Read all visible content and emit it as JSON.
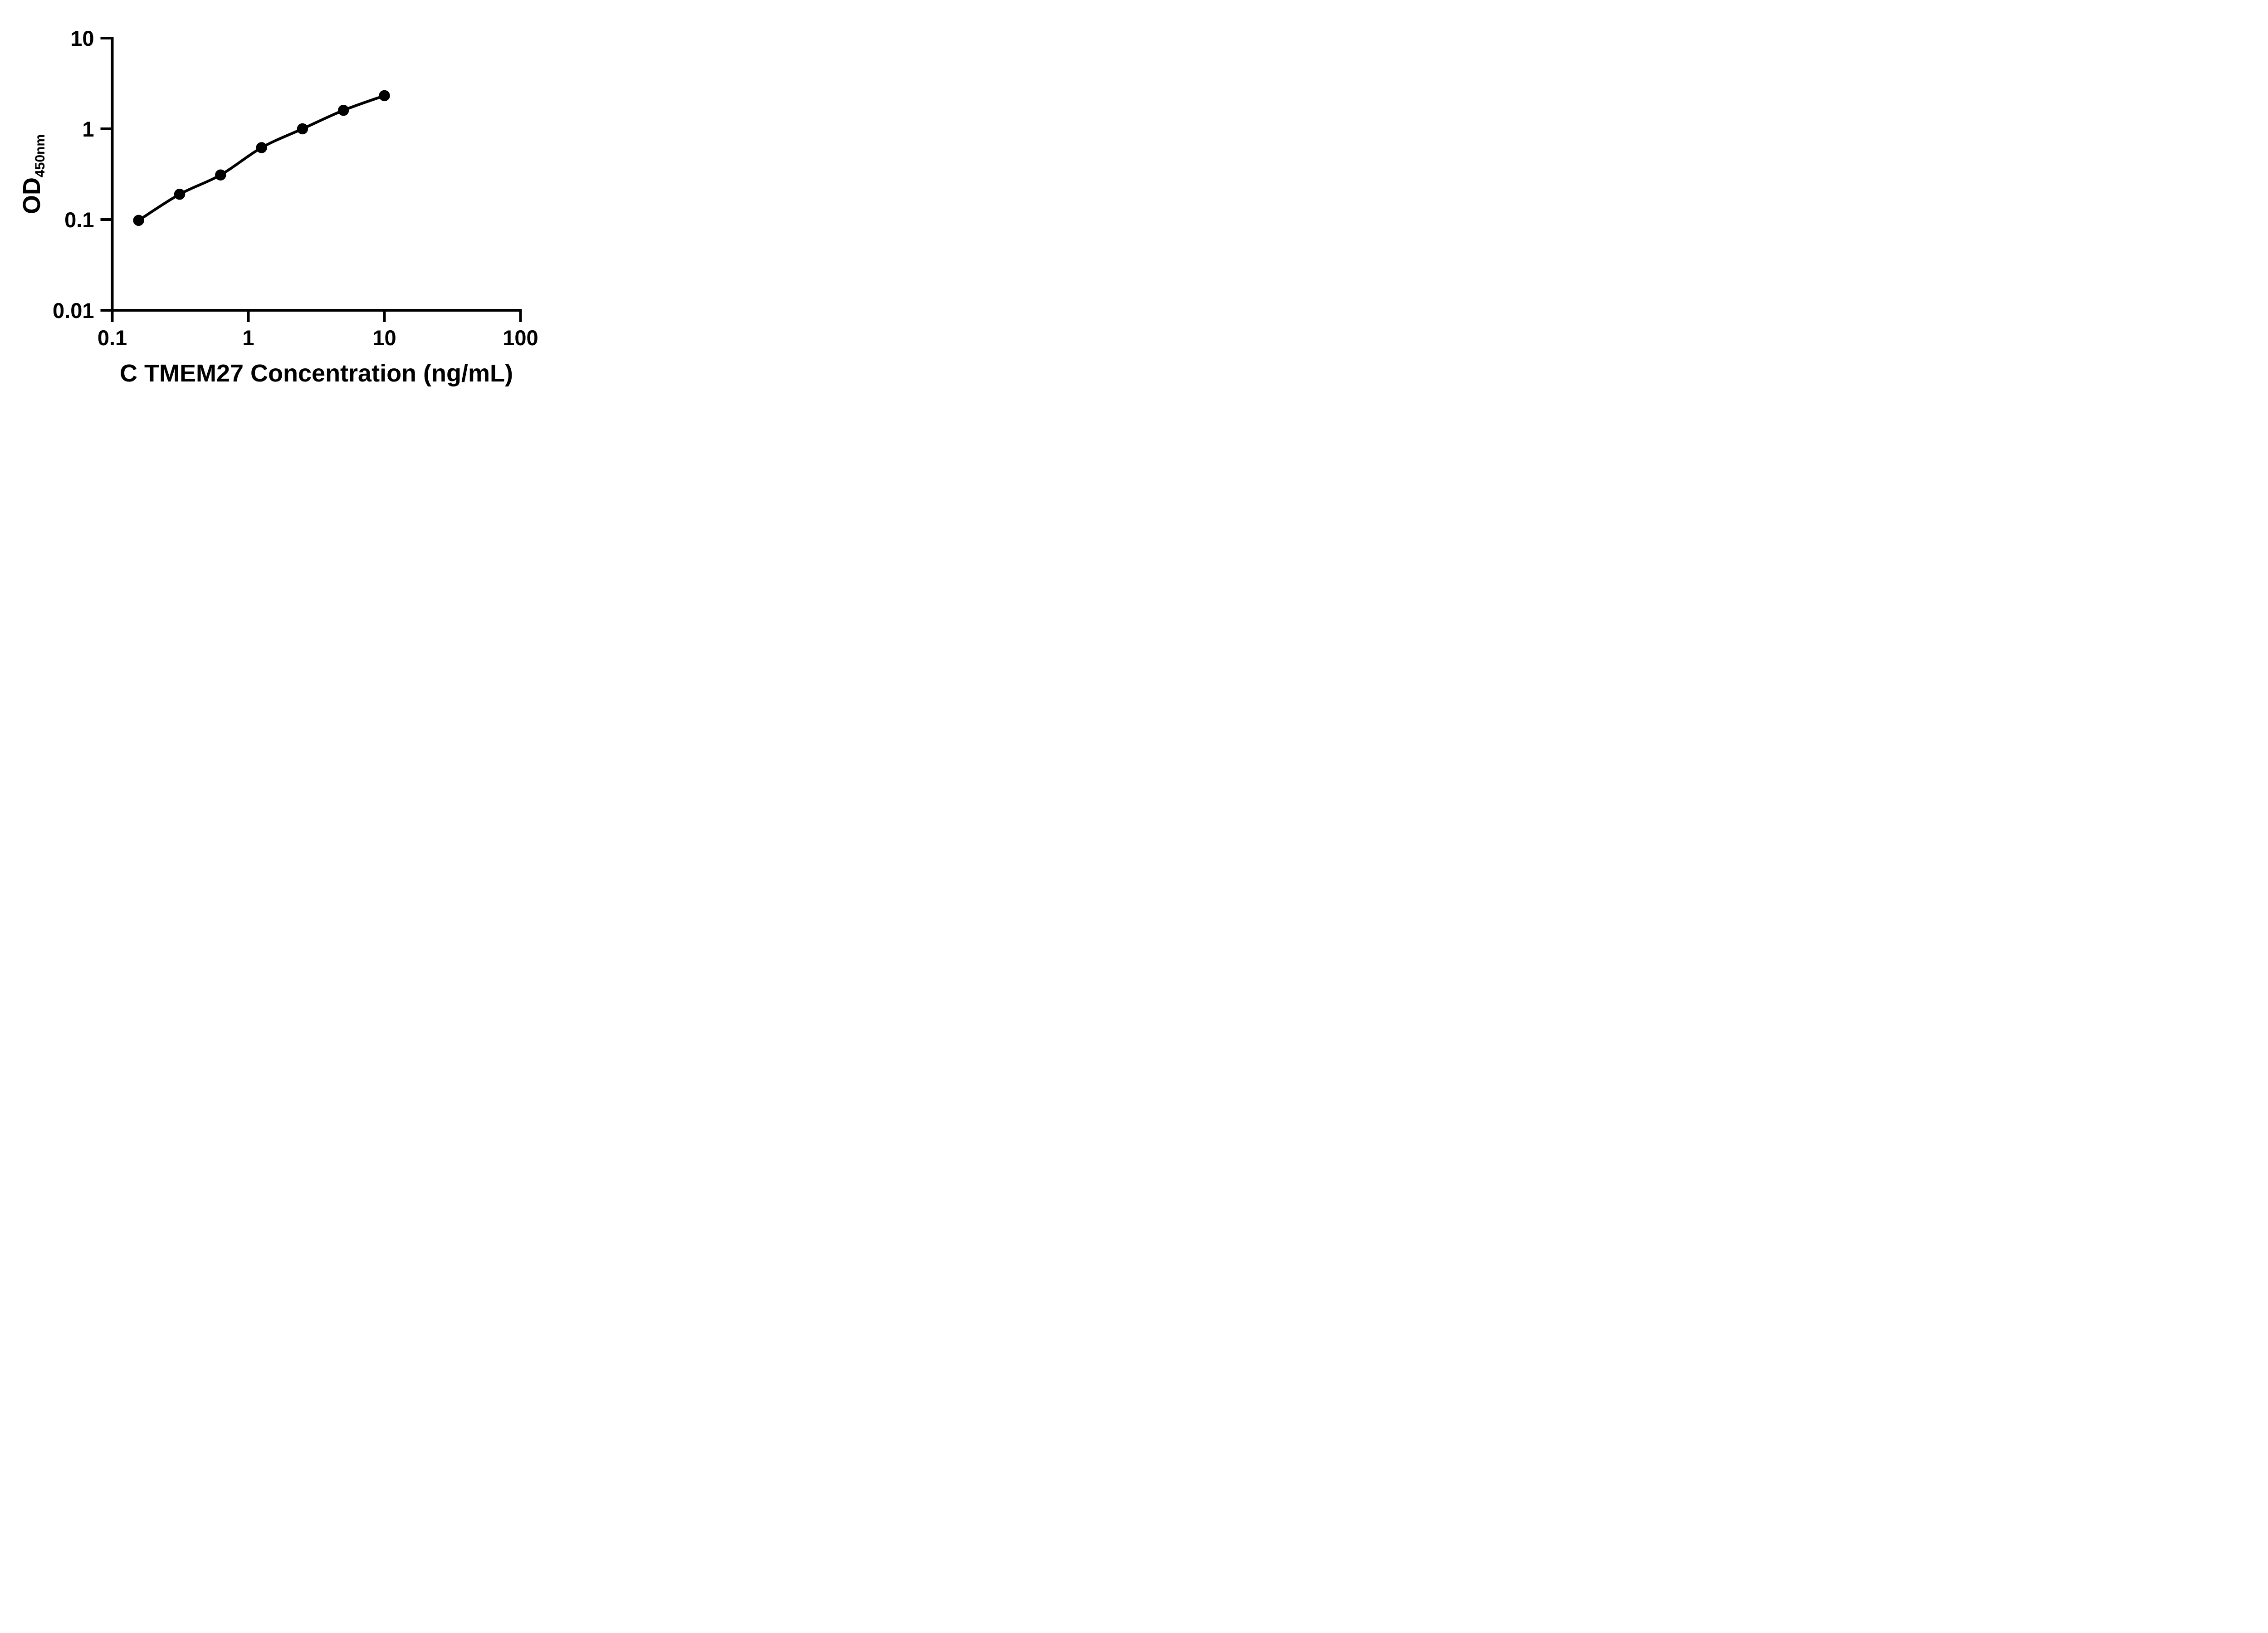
{
  "figure": {
    "background_color": "#ffffff",
    "ink_color": "#000000"
  },
  "chart_data": {
    "type": "line",
    "subtype": "log-log standard curve with filled circle markers",
    "x": [
      0.15625,
      0.3125,
      0.625,
      1.25,
      2.5,
      5,
      10
    ],
    "y": [
      0.098,
      0.19,
      0.31,
      0.62,
      1.0,
      1.6,
      2.32
    ],
    "xlabel": "C TMEM27 Concentration (ng/mL)",
    "ylabel_main": "OD",
    "ylabel_subscript": "450nm",
    "x_tick_labels": [
      "0.1",
      "1",
      "10",
      "100"
    ],
    "y_tick_labels": [
      "10",
      "1",
      "0.1",
      "0.01"
    ],
    "xlim": [
      0.1,
      100
    ],
    "ylim": [
      0.01,
      10
    ],
    "x_log": true,
    "y_log": true,
    "grid": false,
    "legend": false,
    "marker": "filled-circle",
    "line_color": "#000000",
    "marker_color": "#000000"
  }
}
